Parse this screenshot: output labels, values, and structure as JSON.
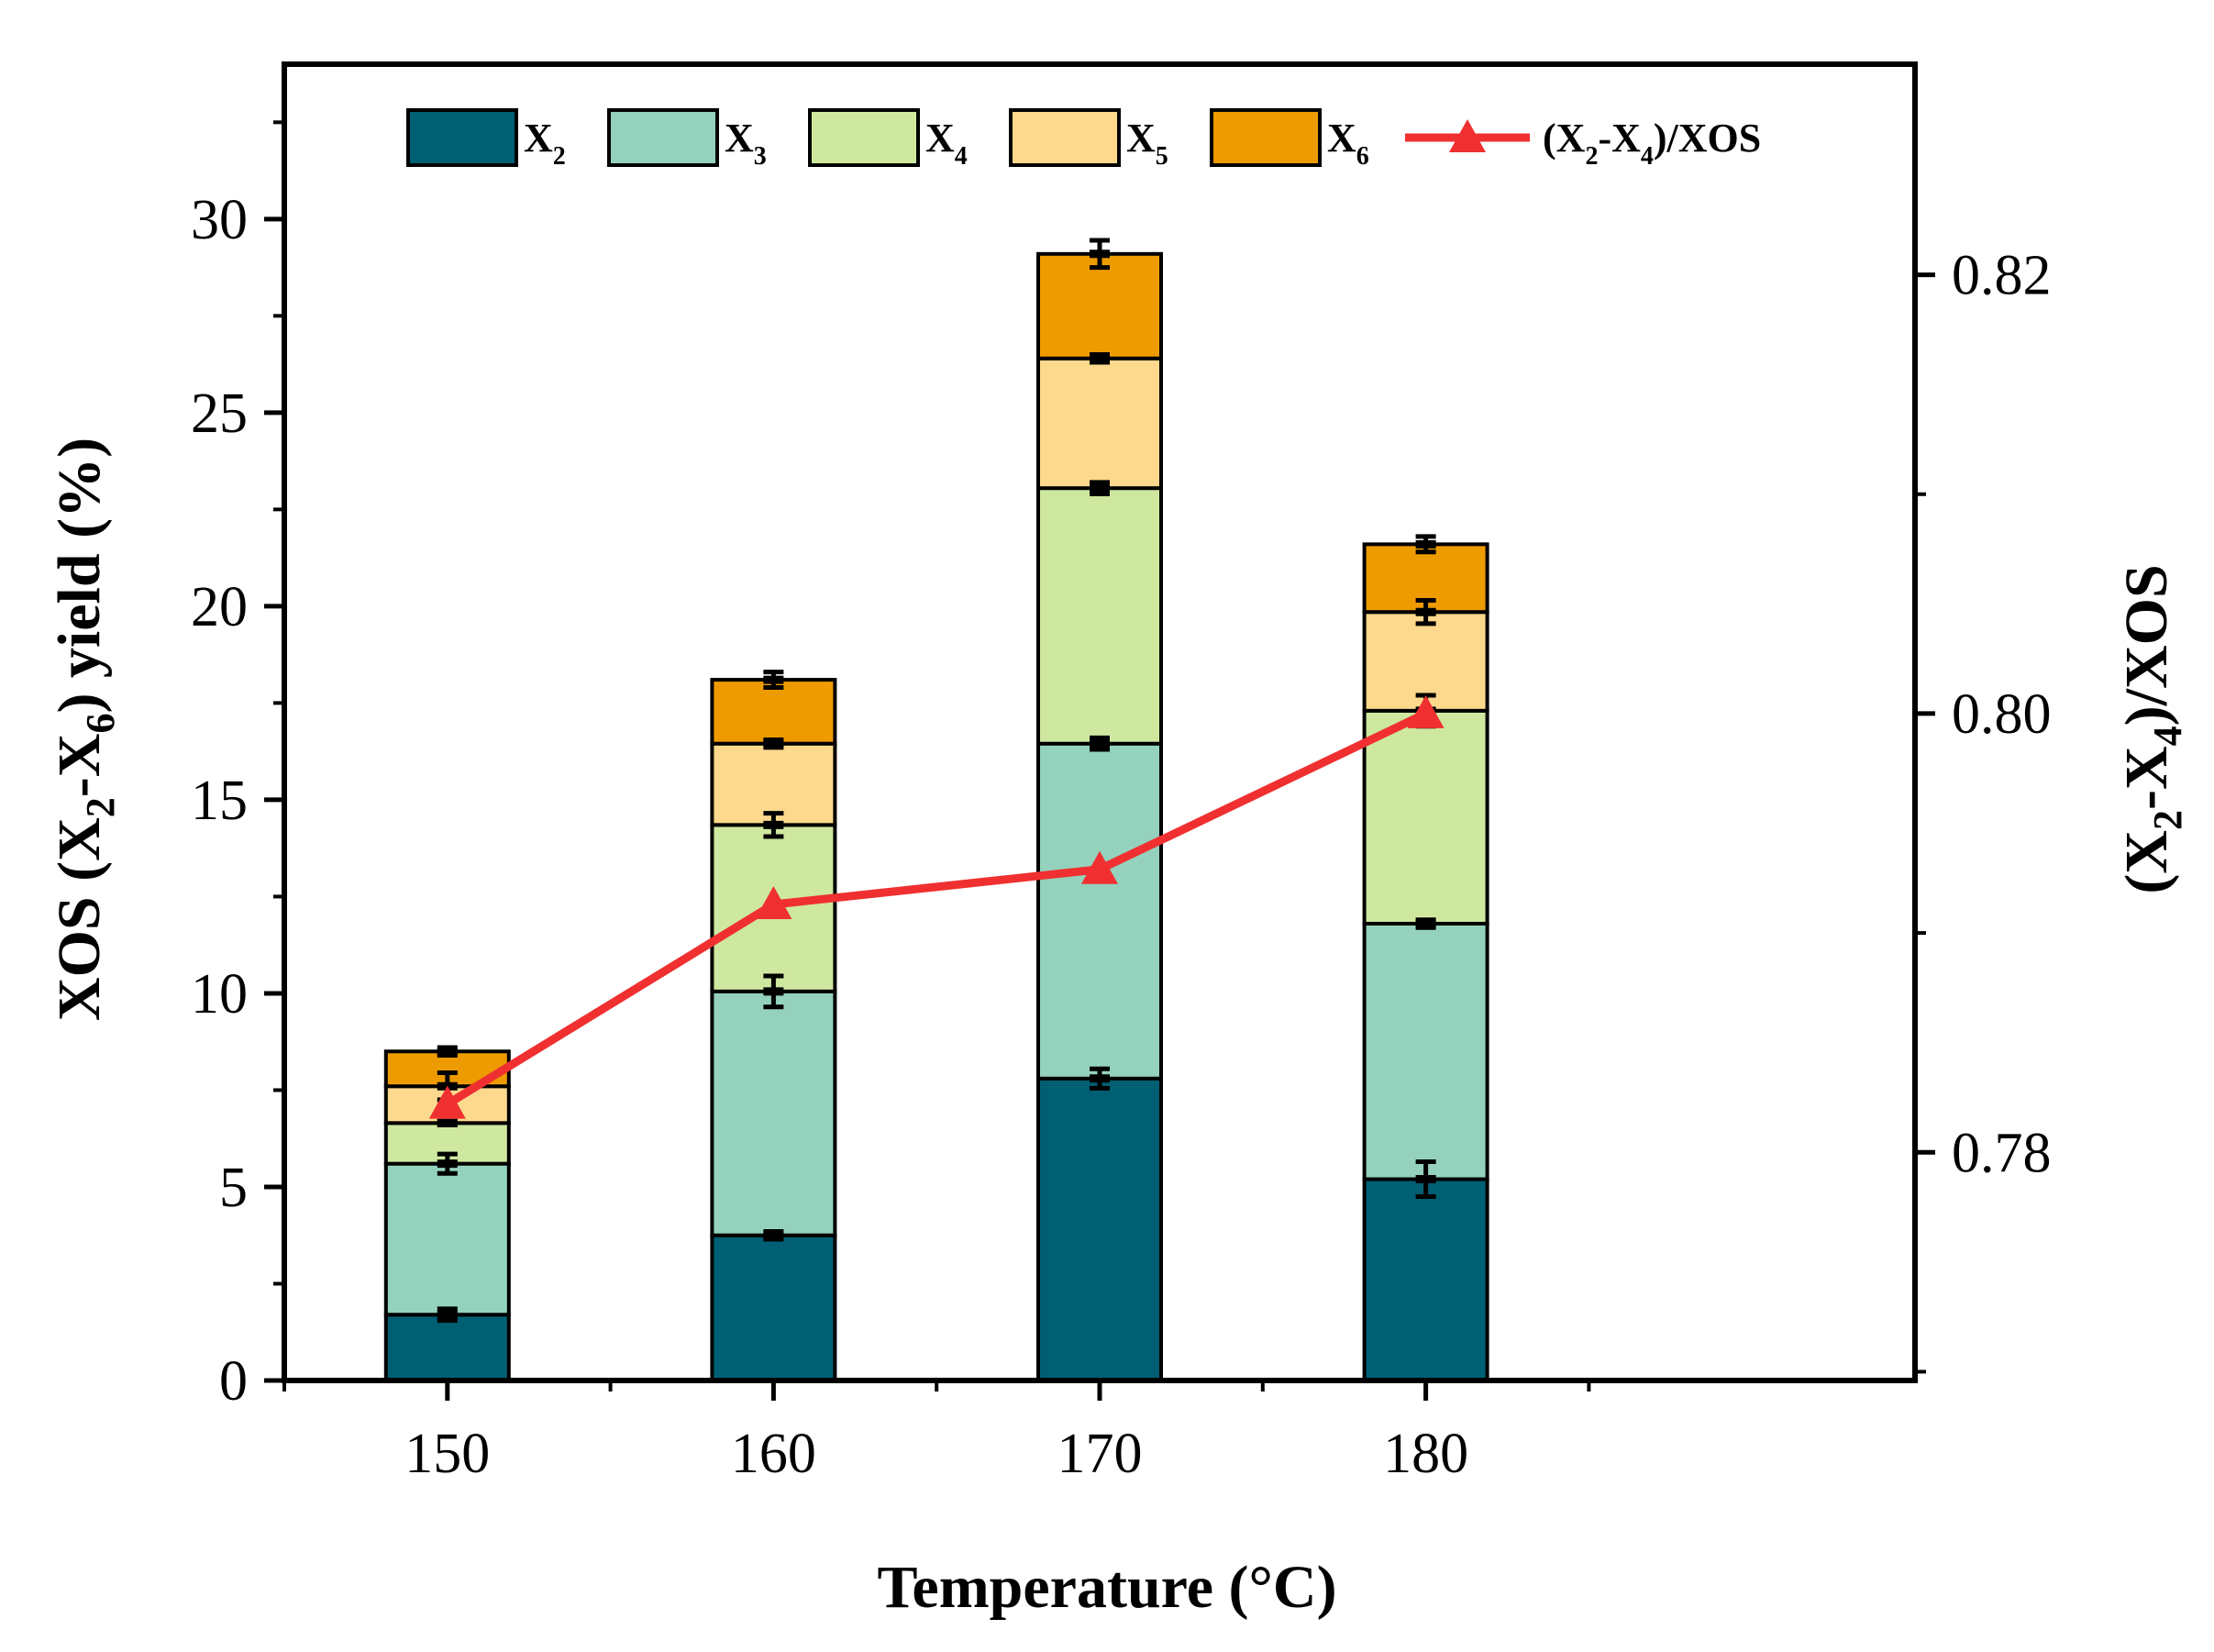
{
  "chart_data": {
    "type": "bar",
    "stacked": true,
    "categories": [
      "150",
      "160",
      "170",
      "180"
    ],
    "xlabel": "Temperature (°C)",
    "ylabel": {
      "prefix": "XOS (X",
      "sub1": "2",
      "mid": "-X",
      "sub2": "6",
      "suffix": ") yield (%)"
    },
    "y2label": {
      "prefix": "(X",
      "sub1": "2",
      "mid": "-X",
      "sub2": "4",
      "suffix": ")/XOS"
    },
    "ylim": [
      0,
      34
    ],
    "yticks": [
      0,
      5,
      10,
      15,
      20,
      25,
      30
    ],
    "y2lim": [
      0.7696,
      0.8296
    ],
    "y2ticks": [
      0.78,
      0.8,
      0.82
    ],
    "y2tick_labels": [
      "0.78",
      "0.80",
      "0.82"
    ],
    "legend_position": "top",
    "series": [
      {
        "name": "X2",
        "label": "X",
        "sub": "2",
        "color": "#005F73",
        "values": [
          1.7,
          3.75,
          7.8,
          5.2
        ],
        "errors": [
          0.15,
          0.1,
          0.25,
          0.45
        ]
      },
      {
        "name": "X3",
        "label": "X",
        "sub": "3",
        "color": "#94D2BD",
        "values": [
          3.9,
          6.3,
          8.65,
          6.6
        ],
        "errors": [
          0.25,
          0.4,
          0.15,
          0.1
        ]
      },
      {
        "name": "X4",
        "label": "X",
        "sub": "4",
        "color": "#CFE8A0",
        "values": [
          1.05,
          4.3,
          6.6,
          5.5
        ],
        "errors": [
          0.05,
          0.3,
          0.15,
          0.4
        ]
      },
      {
        "name": "X5",
        "label": "X",
        "sub": "5",
        "color": "#FCD98D",
        "values": [
          0.95,
          2.1,
          3.35,
          2.55
        ],
        "errors": [
          0.35,
          0.1,
          0.1,
          0.3
        ]
      },
      {
        "name": "X6",
        "label": "X",
        "sub": "6",
        "color": "#EE9B00",
        "values": [
          0.9,
          1.65,
          2.7,
          1.75
        ],
        "errors": [
          0.1,
          0.2,
          0.35,
          0.2
        ]
      }
    ],
    "line_series": {
      "name": "(X2-X4)/XOS",
      "label": {
        "prefix": "(X",
        "sub1": "2",
        "mid": "-X",
        "sub2": "4",
        "suffix": ")/XOS"
      },
      "color": "#F03030",
      "marker": "triangle",
      "axis": "right",
      "values": [
        0.7822,
        0.7913,
        0.7929,
        0.8
      ]
    }
  }
}
